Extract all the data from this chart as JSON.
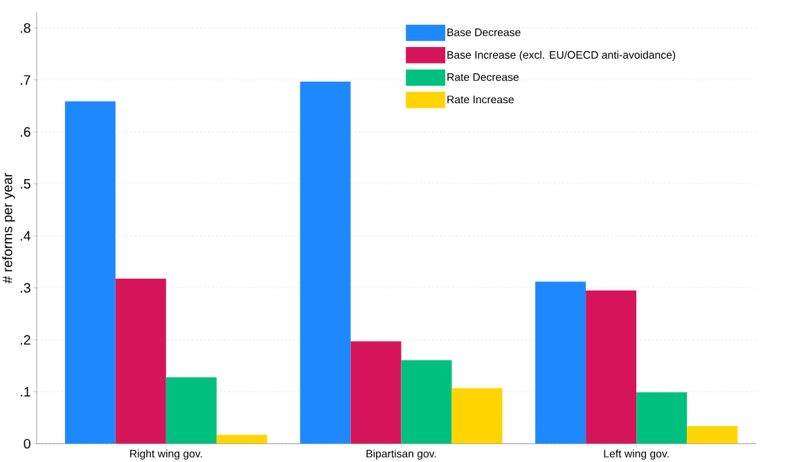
{
  "chart_data": {
    "type": "bar",
    "ylabel": "# reforms per year",
    "categories": [
      "Right wing gov.",
      "Bipartisan gov.",
      "Left wing gov."
    ],
    "series": [
      {
        "name": "Base Decrease",
        "color": "#1e88ff",
        "values": [
          0.659,
          0.697,
          0.312
        ]
      },
      {
        "name": "Base Increase (excl. EU/OECD anti-avoidance)",
        "color": "#d6145a",
        "values": [
          0.318,
          0.197,
          0.295
        ]
      },
      {
        "name": "Rate Decrease",
        "color": "#00c07f",
        "values": [
          0.128,
          0.161,
          0.099
        ]
      },
      {
        "name": "Rate Increase",
        "color": "#ffd400",
        "values": [
          0.017,
          0.107,
          0.034
        ]
      }
    ],
    "ylim": [
      0,
      0.83
    ],
    "yticks": [
      0,
      {
        "value": 0.1,
        "label": ".1"
      },
      {
        "value": 0.2,
        "label": ".2"
      },
      {
        "value": 0.3,
        "label": ".3"
      },
      {
        "value": 0.4,
        "label": ".4"
      },
      {
        "value": 0.5,
        "label": ".5"
      },
      {
        "value": 0.6,
        "label": ".6"
      },
      {
        "value": 0.7,
        "label": ".7"
      },
      {
        "value": 0.8,
        "label": ".8"
      }
    ],
    "grid": "y",
    "legend": "top right"
  }
}
